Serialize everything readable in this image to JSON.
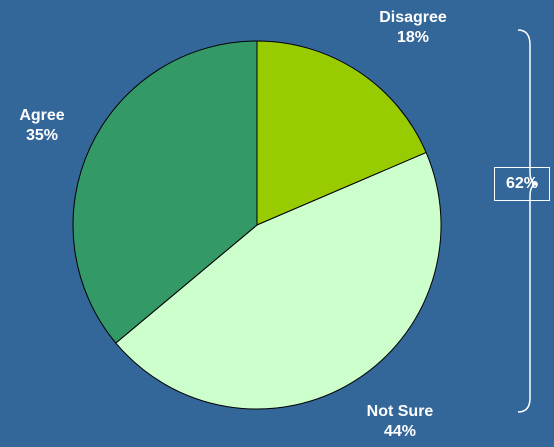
{
  "chart_data": {
    "type": "pie",
    "start_angle_deg": 0,
    "direction": "clockwise",
    "slices": [
      {
        "label": "Disagree",
        "value": 18,
        "display": "18%",
        "color": "#99cc00"
      },
      {
        "label": "Not Sure",
        "value": 44,
        "display": "44%",
        "color": "#ccffcc"
      },
      {
        "label": "Agree",
        "value": 35,
        "display": "35%",
        "color": "#339966"
      }
    ],
    "bracket": {
      "label": "62%",
      "spans": [
        "Disagree",
        "Not Sure"
      ]
    },
    "colors": {
      "background": "#336699",
      "outline": "#000000",
      "text": "#ffffff"
    }
  }
}
